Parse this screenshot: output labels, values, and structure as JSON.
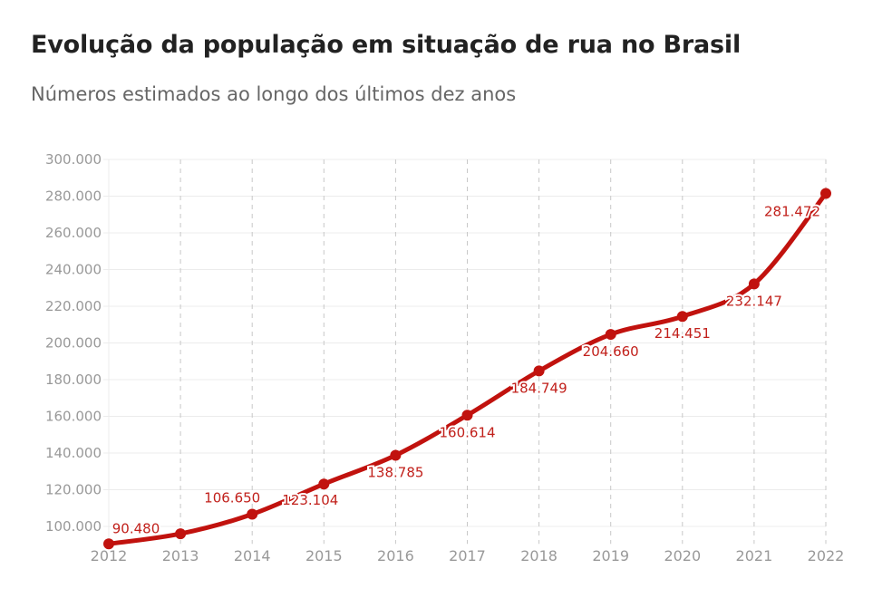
{
  "title": "Evolução da população em situação de rua no Brasil",
  "subtitle": "Números estimados ao longo dos últimos dez anos",
  "chart_data": {
    "type": "line",
    "title": "Evolução da população em situação de rua no Brasil",
    "subtitle": "Números estimados ao longo dos últimos dez anos",
    "xlabel": "",
    "ylabel": "",
    "categories": [
      "2012",
      "2013",
      "2014",
      "2015",
      "2016",
      "2017",
      "2018",
      "2019",
      "2020",
      "2021",
      "2022"
    ],
    "values": [
      90480,
      96000,
      106650,
      123104,
      138785,
      160614,
      184749,
      204660,
      214451,
      232147,
      281472
    ],
    "data_labels": [
      "90.480",
      "",
      "106.650",
      "123.104",
      "138.785",
      "160.614",
      "184.749",
      "204.660",
      "214.451",
      "232.147",
      "281.472"
    ],
    "y_ticks": [
      "100.000",
      "120.000",
      "140.000",
      "160.000",
      "180.000",
      "200.000",
      "220.000",
      "240.000",
      "260.000",
      "280.000",
      "300.000"
    ],
    "ylim": [
      90480,
      300000
    ],
    "grid": true,
    "color": "#c1120e",
    "label_color": "#c1201b"
  }
}
